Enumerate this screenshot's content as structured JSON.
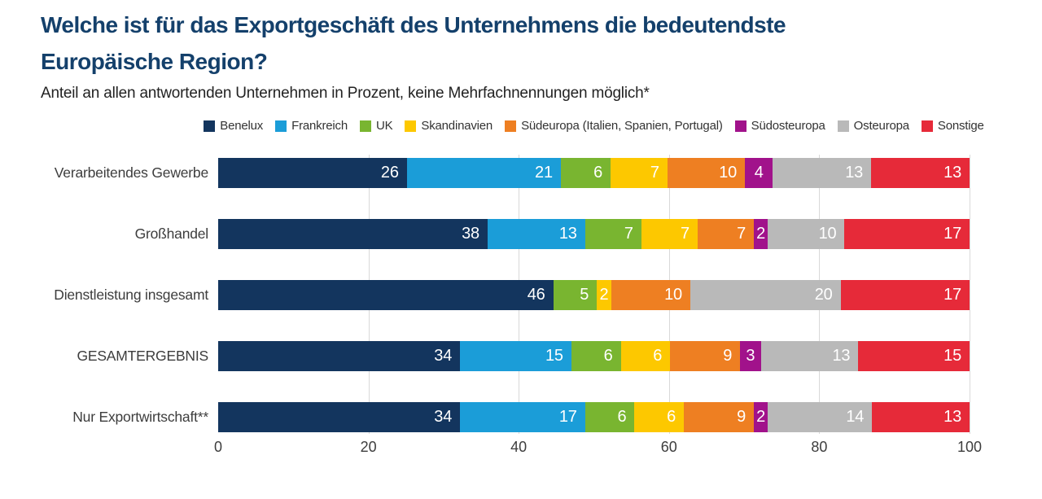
{
  "chart_data": {
    "type": "bar",
    "variant": "horizontal-stacked",
    "title": "Welche ist für das Exportgeschäft des Unternehmens die bedeutendste Europäische Region?",
    "title_lines": [
      "Welche ist für das Exportgeschäft des Unternehmens die bedeutendste",
      "Europäische Region?"
    ],
    "subtitle": "Anteil an allen antwortenden Unternehmen in Prozent, keine Mehrfachnennungen möglich*",
    "categories": [
      "Verarbeitendes Gewerbe",
      "Großhandel",
      "Dienstleistung insgesamt",
      "GESAMTERGEBNIS",
      "Nur Exportwirtschaft**"
    ],
    "series": [
      {
        "name": "Benelux",
        "color": "#13355e",
        "values": [
          26,
          38,
          46,
          34,
          34
        ]
      },
      {
        "name": "Frankreich",
        "color": "#1b9dd8",
        "values": [
          21,
          13,
          0,
          15,
          17
        ]
      },
      {
        "name": "UK",
        "color": "#79b530",
        "values": [
          6,
          7,
          5,
          6,
          6
        ]
      },
      {
        "name": "Skandinavien",
        "color": "#fdc800",
        "values": [
          7,
          7,
          2,
          6,
          6
        ]
      },
      {
        "name": "Südeuropa (Italien, Spanien, Portugal)",
        "color": "#ee7f22",
        "values": [
          10,
          7,
          10,
          9,
          9
        ]
      },
      {
        "name": "Südosteuropa",
        "color": "#a1128b",
        "values": [
          4,
          2,
          0,
          3,
          2
        ]
      },
      {
        "name": "Osteuropa",
        "color": "#b9b9b9",
        "values": [
          13,
          10,
          20,
          13,
          14
        ]
      },
      {
        "name": "Sonstige",
        "color": "#e62a39",
        "values": [
          13,
          17,
          17,
          15,
          13
        ]
      }
    ],
    "xlim": [
      0,
      100
    ],
    "xticks": [
      0,
      20,
      40,
      60,
      80,
      100
    ],
    "legend_position": "top",
    "grid": "vertical",
    "value_label_color": "#ffffff",
    "colors": {
      "title": "#14406b",
      "text": "#3d3d3d",
      "grid": "#d9d9d9",
      "background": "#ffffff"
    }
  }
}
